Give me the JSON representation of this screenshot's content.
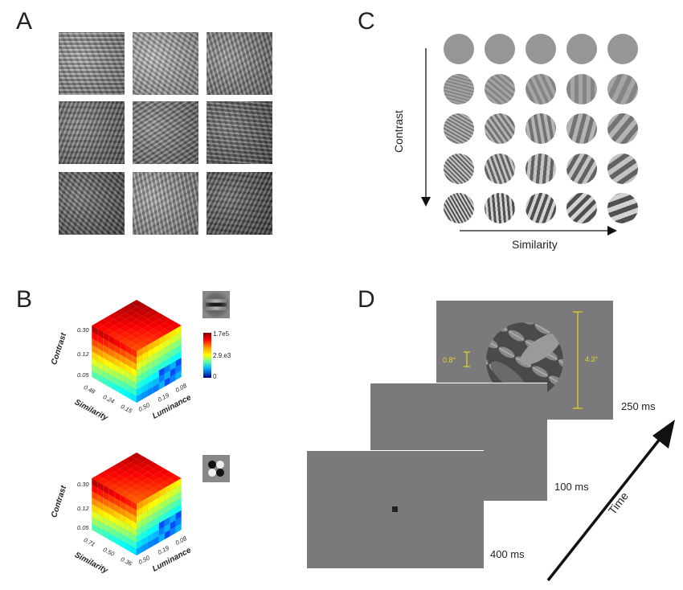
{
  "panels": {
    "a": {
      "letter": "A"
    },
    "b": {
      "letter": "B",
      "cube1": {
        "axis_contrast": "Contrast",
        "axis_similarity": "Similarity",
        "axis_luminance": "Luminance",
        "contrast_ticks": [
          "0.30",
          "0.12",
          "0.05"
        ],
        "similarity_ticks": [
          "0.48",
          "0.24",
          "0.15"
        ],
        "luminance_ticks": [
          "0.50",
          "0.19",
          "0.08"
        ]
      },
      "cube2": {
        "axis_contrast": "Contrast",
        "axis_similarity": "Similarity",
        "axis_luminance": "Luminance",
        "contrast_ticks": [
          "0.30",
          "0.12",
          "0.05"
        ],
        "similarity_ticks": [
          "0.71",
          "0.50",
          "0.36"
        ],
        "luminance_ticks": [
          "0.50",
          "0.19",
          "0.08"
        ]
      },
      "colorbar": {
        "max": "1.7e5",
        "mid": "2.9.e3",
        "min": "0"
      }
    },
    "c": {
      "letter": "C",
      "y_axis": "Contrast",
      "x_axis": "Similarity"
    },
    "d": {
      "letter": "D",
      "timings": [
        "250 ms",
        "100 ms",
        "400 ms"
      ],
      "small_size": "0.8°",
      "large_size": "4.3°",
      "time_label": "Time"
    }
  },
  "colors": {
    "screen_gray": "#7a7a7a",
    "annotation_yellow": "#e8d32a",
    "fixation": "#222222"
  }
}
